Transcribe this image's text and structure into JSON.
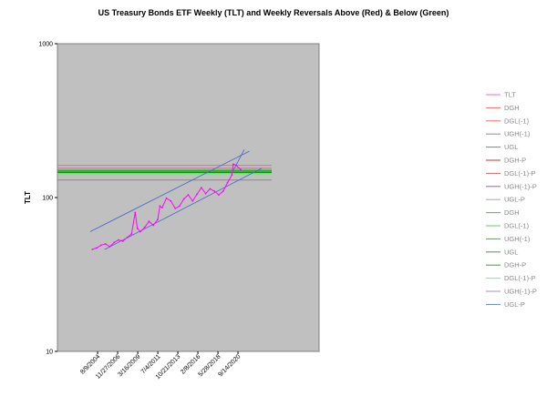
{
  "chart_data": {
    "type": "line",
    "title": "US Treasury Bonds ETF Weekly (TLT) and Weekly Reversals Above (Red) & Below (Green)",
    "ylabel": "TLT",
    "xlabel": "",
    "y_scale": "log",
    "ylim": [
      10,
      1000
    ],
    "y_ticks": [
      "1000",
      "100",
      "10"
    ],
    "x_tick_labels": [
      "8/9/2004",
      "11/27/2006",
      "3/16/2009",
      "7/4/2011",
      "10/21/2013",
      "2/8/2016",
      "5/28/2018",
      "9/14/2020"
    ],
    "grid": false,
    "plot_background": "#c0c0c0",
    "legend_position": "right",
    "legend": [
      {
        "label": "TLT",
        "color": "#ff66cc"
      },
      {
        "label": "DGH",
        "color": "#ff6666"
      },
      {
        "label": "DGL(-1)",
        "color": "#ff6666"
      },
      {
        "label": "UGH(-1)",
        "color": "#cc66aa"
      },
      {
        "label": "UGL",
        "color": "#b07070"
      },
      {
        "label": "DGH-P",
        "color": "#cc3333"
      },
      {
        "label": "DGL(-1)-P",
        "color": "#cc6666"
      },
      {
        "label": "UGH(-1)-P",
        "color": "#996699"
      },
      {
        "label": "UGL-P",
        "color": "#cc9999"
      },
      {
        "label": "DGH",
        "color": "#33cc33"
      },
      {
        "label": "DGL(-1)",
        "color": "#66cc66"
      },
      {
        "label": "UGH(-1)",
        "color": "#669966"
      },
      {
        "label": "UGL",
        "color": "#668866"
      },
      {
        "label": "DGH-P",
        "color": "#33aa33"
      },
      {
        "label": "DGL(-1)-P",
        "color": "#66ff66"
      },
      {
        "label": "UGH(-1)-P",
        "color": "#9999cc"
      },
      {
        "label": "UGL-P",
        "color": "#6688bb"
      }
    ],
    "tlt_series": {
      "name": "TLT",
      "color": "#ff00ff",
      "x": [
        "2004-01",
        "2004-07",
        "2005-01",
        "2005-07",
        "2006-01",
        "2006-07",
        "2007-01",
        "2007-07",
        "2008-01",
        "2008-07",
        "2008-12",
        "2009-03",
        "2009-07",
        "2010-01",
        "2010-07",
        "2011-01",
        "2011-07",
        "2011-10",
        "2012-01",
        "2012-07",
        "2013-01",
        "2013-07",
        "2014-01",
        "2014-07",
        "2015-01",
        "2015-07",
        "2016-01",
        "2016-07",
        "2017-01",
        "2017-07",
        "2018-01",
        "2018-07",
        "2019-01",
        "2019-07",
        "2020-01",
        "2020-03",
        "2020-07",
        "2021-01"
      ],
      "y": [
        46,
        47,
        49,
        50,
        48,
        51,
        53,
        52,
        55,
        58,
        80,
        63,
        60,
        64,
        70,
        66,
        72,
        88,
        86,
        99,
        95,
        85,
        88,
        98,
        104,
        95,
        105,
        116,
        106,
        114,
        110,
        104,
        110,
        125,
        140,
        165,
        162,
        152
      ]
    },
    "horizontal_levels": [
      {
        "value": 162,
        "color": "#ff6666"
      },
      {
        "value": 155,
        "color": "#cc66aa"
      },
      {
        "value": 150,
        "color": "#00cc00"
      },
      {
        "value": 146,
        "color": "#009900"
      },
      {
        "value": 143,
        "color": "#33ff33"
      },
      {
        "value": 130,
        "color": "#888888"
      }
    ],
    "channel_lines": [
      {
        "x": [
          "2003-10",
          "2022-01"
        ],
        "y": [
          60,
          200
        ],
        "color": "#4466cc"
      },
      {
        "x": [
          "2005-06",
          "2023-06"
        ],
        "y": [
          46,
          155
        ],
        "color": "#4466cc"
      },
      {
        "x": [
          "2020-03",
          "2021-06"
        ],
        "y": [
          150,
          205
        ],
        "color": "#4466cc"
      }
    ]
  }
}
